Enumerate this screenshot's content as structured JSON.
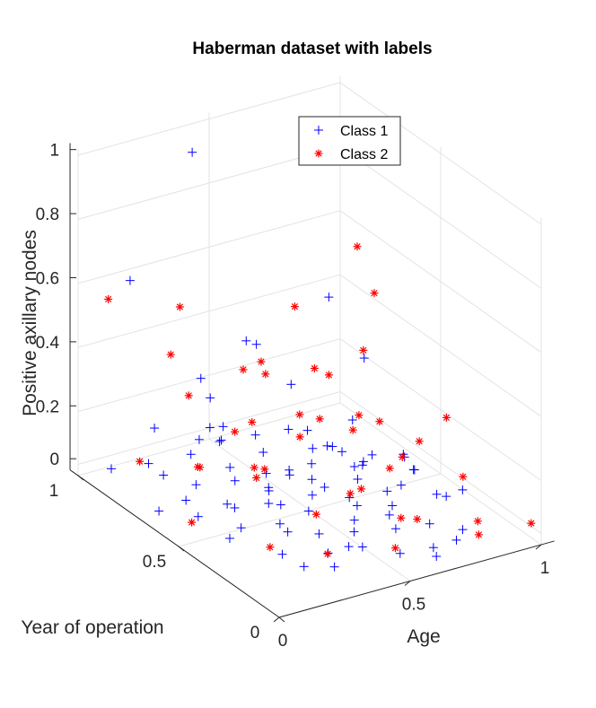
{
  "chart_data": {
    "type": "scatter",
    "title": "Haberman dataset with labels",
    "xlabel": "Age",
    "ylabel": "Year of operation",
    "zlabel": "Positive axillary nodes",
    "xlim": [
      0,
      1
    ],
    "ylim": [
      0,
      1
    ],
    "zlim": [
      0,
      1
    ],
    "x_ticks": [
      {
        "v": 0,
        "label": "0"
      },
      {
        "v": 0.5,
        "label": "0.5"
      },
      {
        "v": 1,
        "label": "1"
      }
    ],
    "y_ticks": [
      {
        "v": 0,
        "label": "0"
      },
      {
        "v": 0.5,
        "label": "0.5"
      },
      {
        "v": 1,
        "label": "1"
      }
    ],
    "z_ticks": [
      {
        "v": 0,
        "label": "0"
      },
      {
        "v": 0.2,
        "label": "0.2"
      },
      {
        "v": 0.4,
        "label": "0.4"
      },
      {
        "v": 0.6,
        "label": "0.6"
      },
      {
        "v": 0.8,
        "label": "0.8"
      },
      {
        "v": 1,
        "label": "1"
      }
    ],
    "grid": true,
    "legend": "top-center",
    "series": [
      {
        "name": "Class 1",
        "marker": "plus",
        "color": "#0000ff",
        "points": [
          [
            0.05,
            0.9,
            0.02
          ],
          [
            0.08,
            0.35,
            0.04
          ],
          [
            0.12,
            0.62,
            0.03
          ],
          [
            0.15,
            0.18,
            0.05
          ],
          [
            0.18,
            0.81,
            0.01
          ],
          [
            0.2,
            0.45,
            0.0
          ],
          [
            0.22,
            0.7,
            0.02
          ],
          [
            0.24,
            0.27,
            0.06
          ],
          [
            0.26,
            0.56,
            0.0
          ],
          [
            0.28,
            0.09,
            0.02
          ],
          [
            0.3,
            0.83,
            0.04
          ],
          [
            0.31,
            0.4,
            0.01
          ],
          [
            0.33,
            0.65,
            0.03
          ],
          [
            0.34,
            0.2,
            0.0
          ],
          [
            0.36,
            0.52,
            0.05
          ],
          [
            0.38,
            0.74,
            0.02
          ],
          [
            0.39,
            0.31,
            0.0
          ],
          [
            0.41,
            0.12,
            0.04
          ],
          [
            0.42,
            0.6,
            0.01
          ],
          [
            0.44,
            0.87,
            0.03
          ],
          [
            0.45,
            0.44,
            0.0
          ],
          [
            0.47,
            0.24,
            0.02
          ],
          [
            0.48,
            0.69,
            0.0
          ],
          [
            0.5,
            0.05,
            0.03
          ],
          [
            0.51,
            0.5,
            0.01
          ],
          [
            0.53,
            0.77,
            0.02
          ],
          [
            0.54,
            0.33,
            0.0
          ],
          [
            0.56,
            0.15,
            0.05
          ],
          [
            0.57,
            0.58,
            0.01
          ],
          [
            0.59,
            0.42,
            0.02
          ],
          [
            0.6,
            0.9,
            0.0
          ],
          [
            0.62,
            0.26,
            0.03
          ],
          [
            0.63,
            0.66,
            0.01
          ],
          [
            0.65,
            0.08,
            0.0
          ],
          [
            0.66,
            0.47,
            0.04
          ],
          [
            0.68,
            0.72,
            0.02
          ],
          [
            0.7,
            0.35,
            0.0
          ],
          [
            0.72,
            0.19,
            0.01
          ],
          [
            0.74,
            0.55,
            0.03
          ],
          [
            0.76,
            0.85,
            0.0
          ],
          [
            0.78,
            0.41,
            0.02
          ],
          [
            0.8,
            0.13,
            0.0
          ],
          [
            0.83,
            0.62,
            0.01
          ],
          [
            0.86,
            0.29,
            0.02
          ],
          [
            0.9,
            0.5,
            0.0
          ],
          [
            0.1,
            0.78,
            0.08
          ],
          [
            0.17,
            0.48,
            0.07
          ],
          [
            0.23,
            0.92,
            0.1
          ],
          [
            0.29,
            0.37,
            0.09
          ],
          [
            0.35,
            0.11,
            0.06
          ],
          [
            0.4,
            0.8,
            0.12
          ],
          [
            0.46,
            0.55,
            0.08
          ],
          [
            0.52,
            0.29,
            0.07
          ],
          [
            0.58,
            0.71,
            0.11
          ],
          [
            0.64,
            0.46,
            0.09
          ],
          [
            0.7,
            0.6,
            0.06
          ],
          [
            0.77,
            0.22,
            0.08
          ],
          [
            0.84,
            0.73,
            0.07
          ],
          [
            0.19,
            0.3,
            0.15
          ],
          [
            0.27,
            0.64,
            0.18
          ],
          [
            0.37,
            0.43,
            0.14
          ],
          [
            0.43,
            0.95,
            0.2
          ],
          [
            0.55,
            0.18,
            0.16
          ],
          [
            0.61,
            0.53,
            0.13
          ],
          [
            0.69,
            0.84,
            0.17
          ],
          [
            0.75,
            0.36,
            0.15
          ],
          [
            0.32,
            0.76,
            0.25
          ],
          [
            0.49,
            0.4,
            0.22
          ],
          [
            0.67,
            0.25,
            0.21
          ],
          [
            0.14,
            0.58,
            0.24
          ],
          [
            0.58,
            0.92,
            0.3
          ],
          [
            0.25,
            0.1,
            0.28
          ],
          [
            0.8,
            0.62,
            0.33
          ],
          [
            0.45,
            0.7,
            0.42
          ],
          [
            0.88,
            0.9,
            0.38
          ],
          [
            0.36,
            0.05,
            0.36
          ],
          [
            0.09,
            0.52,
            0.03
          ],
          [
            0.21,
            0.15,
            0.01
          ],
          [
            0.48,
            0.97,
            0.02
          ],
          [
            0.73,
            0.07,
            0.01
          ],
          [
            0.85,
            0.44,
            0.04
          ],
          [
            0.93,
            0.3,
            0.02
          ],
          [
            0.04,
            0.65,
            0.0
          ],
          [
            0.6,
            0.0,
            0.02
          ],
          [
            0.16,
            0.95,
            0.58
          ],
          [
            0.42,
            0.98,
            0.92
          ]
        ]
      },
      {
        "name": "Class 2",
        "marker": "asterisk",
        "color": "#ff0000",
        "points": [
          [
            0.05,
            0.5,
            0.03
          ],
          [
            0.12,
            0.85,
            0.05
          ],
          [
            0.18,
            0.28,
            0.02
          ],
          [
            0.25,
            0.72,
            0.06
          ],
          [
            0.3,
            0.15,
            0.03
          ],
          [
            0.35,
            0.58,
            0.1
          ],
          [
            0.41,
            0.35,
            0.04
          ],
          [
            0.46,
            0.82,
            0.08
          ],
          [
            0.52,
            0.1,
            0.02
          ],
          [
            0.57,
            0.64,
            0.12
          ],
          [
            0.62,
            0.4,
            0.05
          ],
          [
            0.68,
            0.2,
            0.03
          ],
          [
            0.73,
            0.75,
            0.09
          ],
          [
            0.79,
            0.48,
            0.04
          ],
          [
            0.85,
            0.12,
            0.02
          ],
          [
            0.92,
            0.7,
            0.06
          ],
          [
            0.97,
            0.35,
            0.03
          ],
          [
            1.0,
            0.05,
            0.01
          ],
          [
            0.15,
            0.6,
            0.14
          ],
          [
            0.22,
            0.4,
            0.18
          ],
          [
            0.33,
            0.88,
            0.2
          ],
          [
            0.44,
            0.22,
            0.16
          ],
          [
            0.5,
            0.55,
            0.25
          ],
          [
            0.6,
            0.85,
            0.22
          ],
          [
            0.7,
            0.3,
            0.18
          ],
          [
            0.78,
            0.62,
            0.15
          ],
          [
            0.88,
            0.45,
            0.12
          ],
          [
            0.28,
            0.5,
            0.3
          ],
          [
            0.4,
            0.7,
            0.35
          ],
          [
            0.55,
            0.35,
            0.28
          ],
          [
            0.65,
            0.6,
            0.32
          ],
          [
            0.75,
            0.9,
            0.38
          ],
          [
            0.83,
            0.25,
            0.3
          ],
          [
            0.2,
            0.8,
            0.4
          ],
          [
            0.48,
            0.45,
            0.45
          ],
          [
            0.72,
            0.52,
            0.42
          ],
          [
            0.9,
            0.7,
            0.48
          ],
          [
            0.95,
            0.85,
            0.55
          ],
          [
            0.35,
            0.95,
            0.45
          ],
          [
            0.1,
            0.98,
            0.52
          ],
          [
            0.58,
            0.15,
            0.08
          ],
          [
            0.42,
            0.62,
            0.06
          ],
          [
            0.8,
            0.05,
            0.02
          ],
          [
            0.66,
            0.95,
            0.2
          ]
        ]
      }
    ]
  }
}
